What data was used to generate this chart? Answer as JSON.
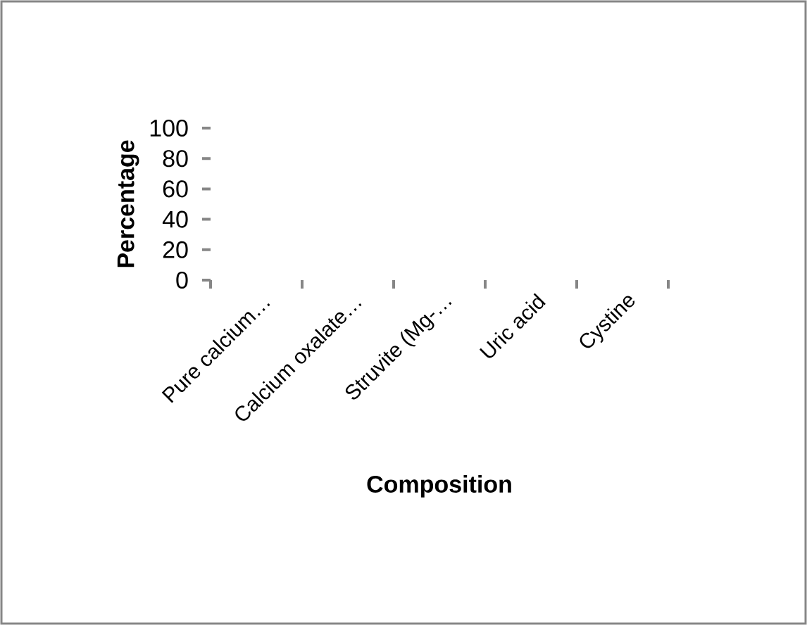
{
  "chart_data": {
    "type": "bar",
    "xlabel": "Composition",
    "ylabel": "Percentage",
    "categories": [
      "Pure calcium…",
      "Calcium oxalate…",
      "Struvite (Mg-…",
      "Uric acid",
      "Cystine"
    ],
    "values": [
      0,
      0,
      0,
      0,
      0
    ],
    "ylim": [
      0,
      100
    ],
    "yticks": [
      0,
      20,
      40,
      60,
      80,
      100
    ]
  }
}
